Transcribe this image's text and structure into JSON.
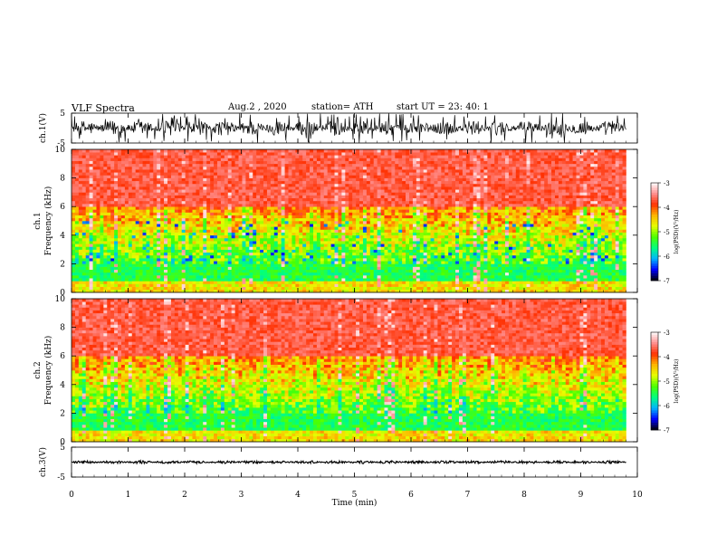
{
  "header": {
    "title": "VLF  Spectra",
    "date": "Aug.2  , 2020",
    "station": "station= ATH",
    "start": "start  UT  =    23: 40: 1"
  },
  "chart_data": {
    "type": "heatmap",
    "title": "VLF  Spectra",
    "xlabel": "Time  (min)",
    "xlim": [
      0,
      10
    ],
    "x_ticks": [
      "0",
      "1",
      "2",
      "3",
      "4",
      "5",
      "6",
      "7",
      "8",
      "9",
      "10"
    ],
    "data_end_min": 9.8,
    "panels": [
      {
        "name": "ch1-waveform",
        "type": "line",
        "ylabel": "ch.1(V)",
        "ylim": [
          -5,
          5
        ],
        "y_ticks": [
          "5",
          "-5"
        ],
        "baseline_v": 0.0,
        "envelope_v": 2.6
      },
      {
        "name": "ch1-spectrogram",
        "type": "heatmap",
        "ylabel_line1": "ch.1",
        "ylabel_line2": "Frequency  (kHz)",
        "ylim": [
          0,
          10
        ],
        "y_ticks": [
          "0",
          "2",
          "4",
          "6",
          "8",
          "10"
        ],
        "colorbar": {
          "label": "log(PSD)(V²/Hz)",
          "range": [
            -7,
            -3
          ],
          "ticks": [
            "-3",
            "-4",
            "-5",
            "-6",
            "-7"
          ]
        }
      },
      {
        "name": "ch2-spectrogram",
        "type": "heatmap",
        "ylabel_line1": "ch.2",
        "ylabel_line2": "Frequency  (kHz)",
        "ylim": [
          0,
          10
        ],
        "y_ticks": [
          "0",
          "2",
          "4",
          "6",
          "8",
          "10"
        ],
        "colorbar": {
          "label": "log(PSD)(V²/Hz)",
          "range": [
            -7,
            -3
          ],
          "ticks": [
            "-3",
            "-4",
            "-5",
            "-6",
            "-7"
          ]
        }
      },
      {
        "name": "ch3-waveform",
        "type": "line",
        "ylabel": "ch.3(V)",
        "ylim": [
          -5,
          5
        ],
        "y_ticks": [
          "5",
          "-5"
        ],
        "baseline_v": 0.0,
        "envelope_v": 0.5
      }
    ],
    "colormap": [
      "#000000",
      "#0000ff",
      "#00b4ff",
      "#00ff80",
      "#4cff00",
      "#e6ff00",
      "#ffb400",
      "#ff3000",
      "#ff9090",
      "#ffffff"
    ]
  }
}
